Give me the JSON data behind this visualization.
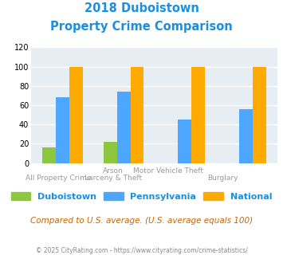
{
  "title_line1": "2018 Duboistown",
  "title_line2": "Property Crime Comparison",
  "cat_labels_top": [
    "",
    "Arson",
    "Motor Vehicle Theft",
    ""
  ],
  "cat_labels_bot": [
    "All Property Crime",
    "Larceny & Theft",
    "",
    "Burglary"
  ],
  "duboistown": [
    16,
    22,
    0,
    0
  ],
  "pennsylvania": [
    68,
    74,
    45,
    56
  ],
  "national": [
    100,
    100,
    100,
    100
  ],
  "colors": {
    "duboistown": "#8dc63f",
    "pennsylvania": "#4da6ff",
    "national": "#ffaa00",
    "title": "#1a8fe0",
    "background_chart": "#e6eef4",
    "grid": "#ffffff",
    "footer": "#888888",
    "compared_text": "#cc6600",
    "xlabel": "#999999"
  },
  "ylim": [
    0,
    120
  ],
  "yticks": [
    0,
    20,
    40,
    60,
    80,
    100,
    120
  ],
  "legend_labels": [
    "Duboistown",
    "Pennsylvania",
    "National"
  ],
  "footer_text": "© 2025 CityRating.com - https://www.cityrating.com/crime-statistics/",
  "compared_text": "Compared to U.S. average. (U.S. average equals 100)"
}
